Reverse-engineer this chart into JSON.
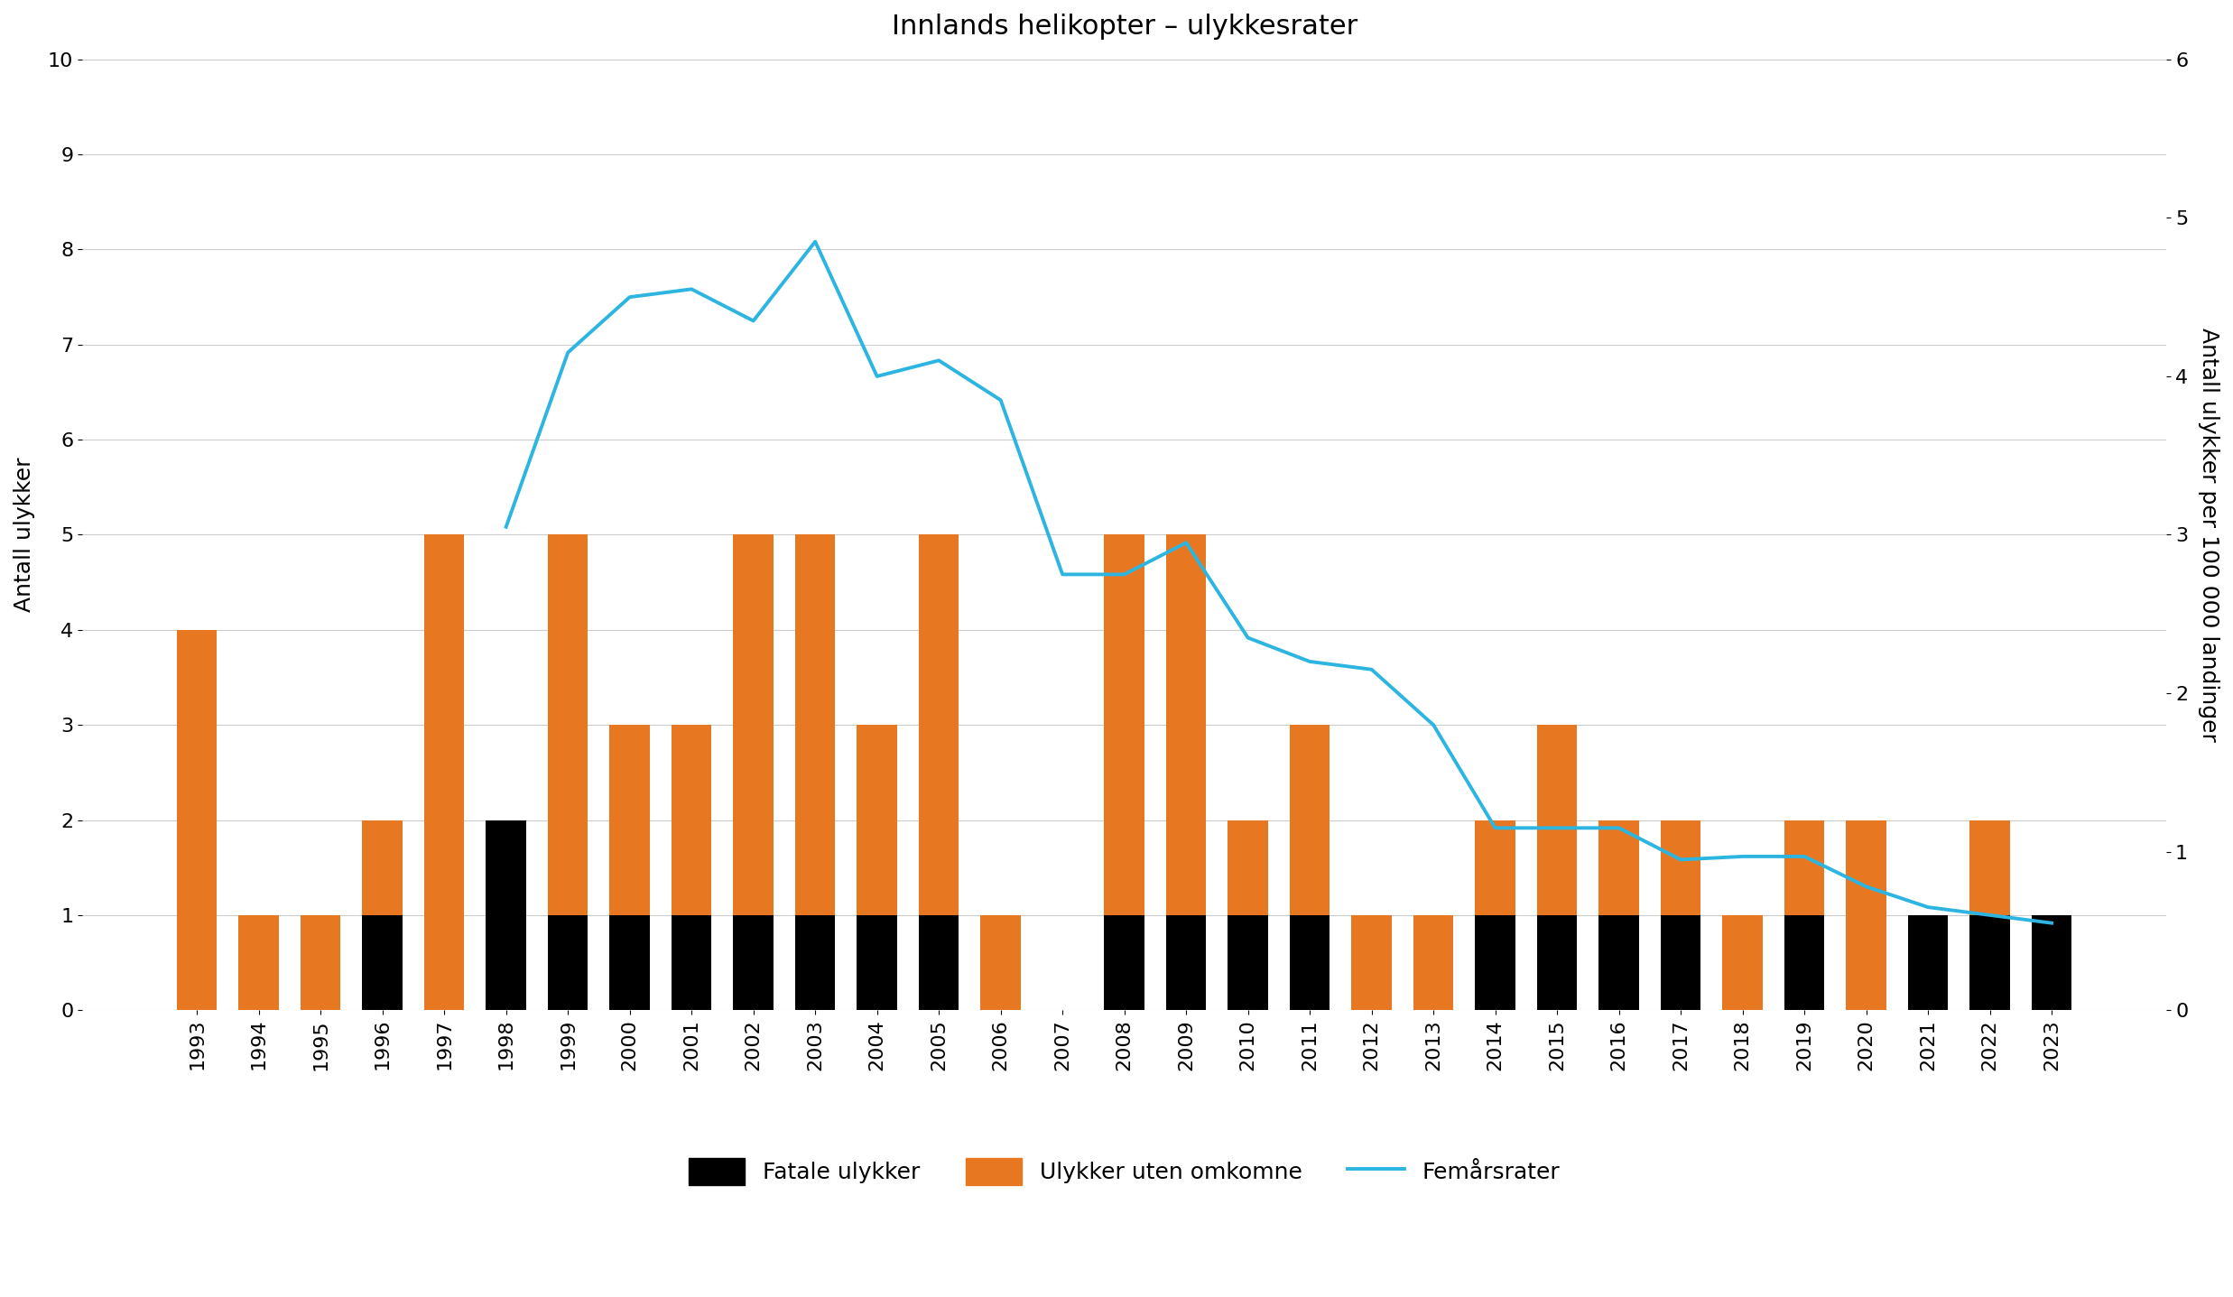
{
  "years": [
    1993,
    1994,
    1995,
    1996,
    1997,
    1998,
    1999,
    2000,
    2001,
    2002,
    2003,
    2004,
    2005,
    2006,
    2007,
    2008,
    2009,
    2010,
    2011,
    2012,
    2013,
    2014,
    2015,
    2016,
    2017,
    2018,
    2019,
    2020,
    2021,
    2022,
    2023
  ],
  "fatal": [
    0,
    0,
    0,
    1,
    0,
    2,
    1,
    1,
    1,
    1,
    1,
    1,
    1,
    0,
    0,
    1,
    1,
    1,
    1,
    0,
    0,
    1,
    1,
    1,
    1,
    0,
    1,
    0,
    1,
    1,
    1
  ],
  "non_fatal": [
    4,
    1,
    1,
    1,
    5,
    0,
    4,
    2,
    2,
    4,
    4,
    2,
    4,
    1,
    0,
    4,
    4,
    1,
    2,
    1,
    1,
    1,
    2,
    1,
    1,
    1,
    1,
    2,
    0,
    1,
    0
  ],
  "rate_years": [
    1998,
    1999,
    2000,
    2001,
    2002,
    2003,
    2004,
    2005,
    2006,
    2007,
    2008,
    2009,
    2010,
    2011,
    2012,
    2013,
    2014,
    2015,
    2016,
    2017,
    2018,
    2019,
    2020,
    2021,
    2022,
    2023
  ],
  "rate_vals": [
    3.05,
    4.15,
    4.5,
    4.55,
    4.35,
    4.85,
    4.0,
    4.1,
    3.85,
    2.75,
    2.75,
    2.95,
    2.35,
    2.2,
    2.15,
    1.8,
    1.15,
    1.15,
    1.15,
    0.95,
    0.97,
    0.97,
    0.78,
    0.65,
    0.6,
    0.55
  ],
  "bar_color_fatal": "#000000",
  "bar_color_non_fatal": "#E87722",
  "line_color": "#2BB5E0",
  "title": "Innlands helikopter – ulykkesrater",
  "ylabel_left": "Antall ulykker",
  "ylabel_right": "Antall ulykker per 100 000 landinger",
  "ylim_left": [
    0,
    10
  ],
  "ylim_right": [
    0,
    6
  ],
  "yticks_left": [
    0,
    1,
    2,
    3,
    4,
    5,
    6,
    7,
    8,
    9,
    10
  ],
  "yticks_right": [
    0,
    1,
    2,
    3,
    4,
    5,
    6
  ],
  "legend_fatal": "Fatale ulykker",
  "legend_non_fatal": "Ulykker uten omkomne",
  "legend_rate": "Femårsrater",
  "background_color": "#ffffff",
  "title_fontsize": 22,
  "axis_fontsize": 18,
  "tick_fontsize": 16,
  "legend_fontsize": 18
}
